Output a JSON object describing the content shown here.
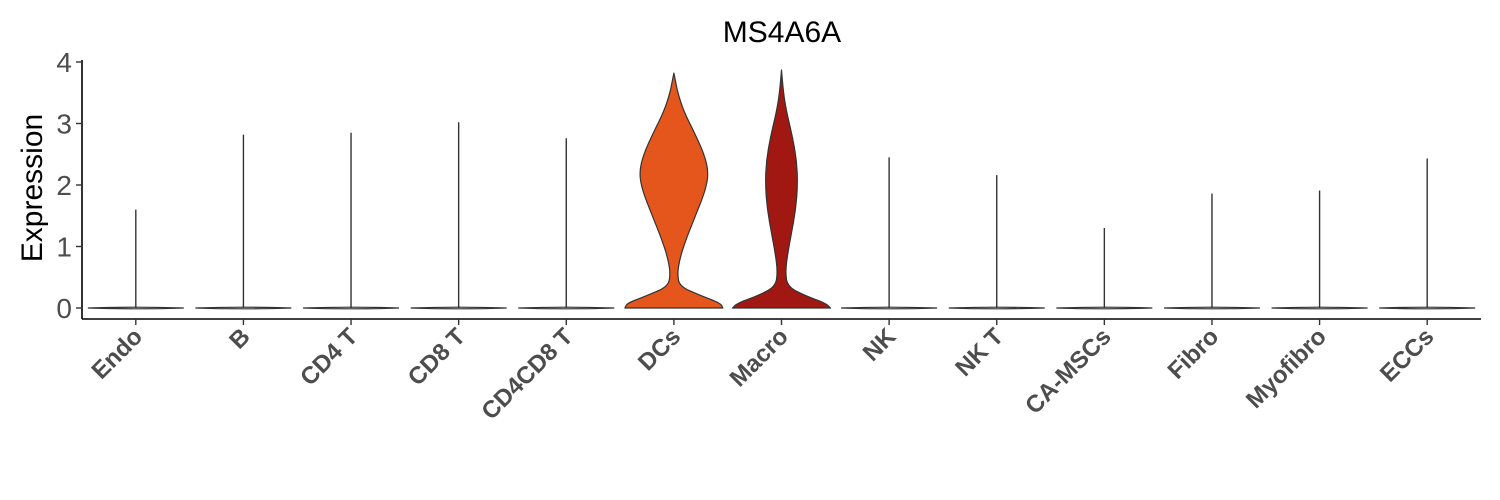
{
  "chart_data": {
    "type": "violin",
    "title": "MS4A6A",
    "xlabel": "",
    "ylabel": "Expression",
    "ylim": [
      -0.15,
      4.05
    ],
    "yticks": [
      0,
      1,
      2,
      3,
      4
    ],
    "categories": [
      "Endo",
      "B",
      "CD4 T",
      "CD8 T",
      "CD4CD8 T",
      "DCs",
      "Macro",
      "NK",
      "NK T",
      "CA-MSCs",
      "Fibro",
      "Myofibro",
      "ECCs"
    ],
    "max_values": [
      1.6,
      2.82,
      2.85,
      3.02,
      2.76,
      3.82,
      3.87,
      2.45,
      2.16,
      1.3,
      1.86,
      1.91,
      2.43
    ],
    "fill_colors": [
      "#ffffff",
      "#ffffff",
      "#ffffff",
      "#ffffff",
      "#ffffff",
      "#e4561b",
      "#a11812",
      "#ffffff",
      "#ffffff",
      "#ffffff",
      "#ffffff",
      "#ffffff",
      "#ffffff"
    ],
    "density_profiles": {
      "DCs": [
        [
          0,
          1.0
        ],
        [
          0.08,
          0.95
        ],
        [
          0.2,
          0.55
        ],
        [
          0.35,
          0.12
        ],
        [
          0.55,
          0.07
        ],
        [
          0.8,
          0.12
        ],
        [
          1.1,
          0.24
        ],
        [
          1.5,
          0.44
        ],
        [
          1.9,
          0.64
        ],
        [
          2.2,
          0.71
        ],
        [
          2.5,
          0.62
        ],
        [
          2.85,
          0.42
        ],
        [
          3.2,
          0.2
        ],
        [
          3.5,
          0.08
        ],
        [
          3.7,
          0.03
        ],
        [
          3.82,
          0.0
        ]
      ],
      "Macro": [
        [
          0,
          1.0
        ],
        [
          0.08,
          0.9
        ],
        [
          0.2,
          0.48
        ],
        [
          0.35,
          0.12
        ],
        [
          0.6,
          0.08
        ],
        [
          0.9,
          0.13
        ],
        [
          1.2,
          0.2
        ],
        [
          1.6,
          0.29
        ],
        [
          2.0,
          0.33
        ],
        [
          2.4,
          0.31
        ],
        [
          2.8,
          0.22
        ],
        [
          3.2,
          0.1
        ],
        [
          3.5,
          0.04
        ],
        [
          3.87,
          0.0
        ]
      ]
    },
    "grid": false,
    "legend": "none"
  }
}
